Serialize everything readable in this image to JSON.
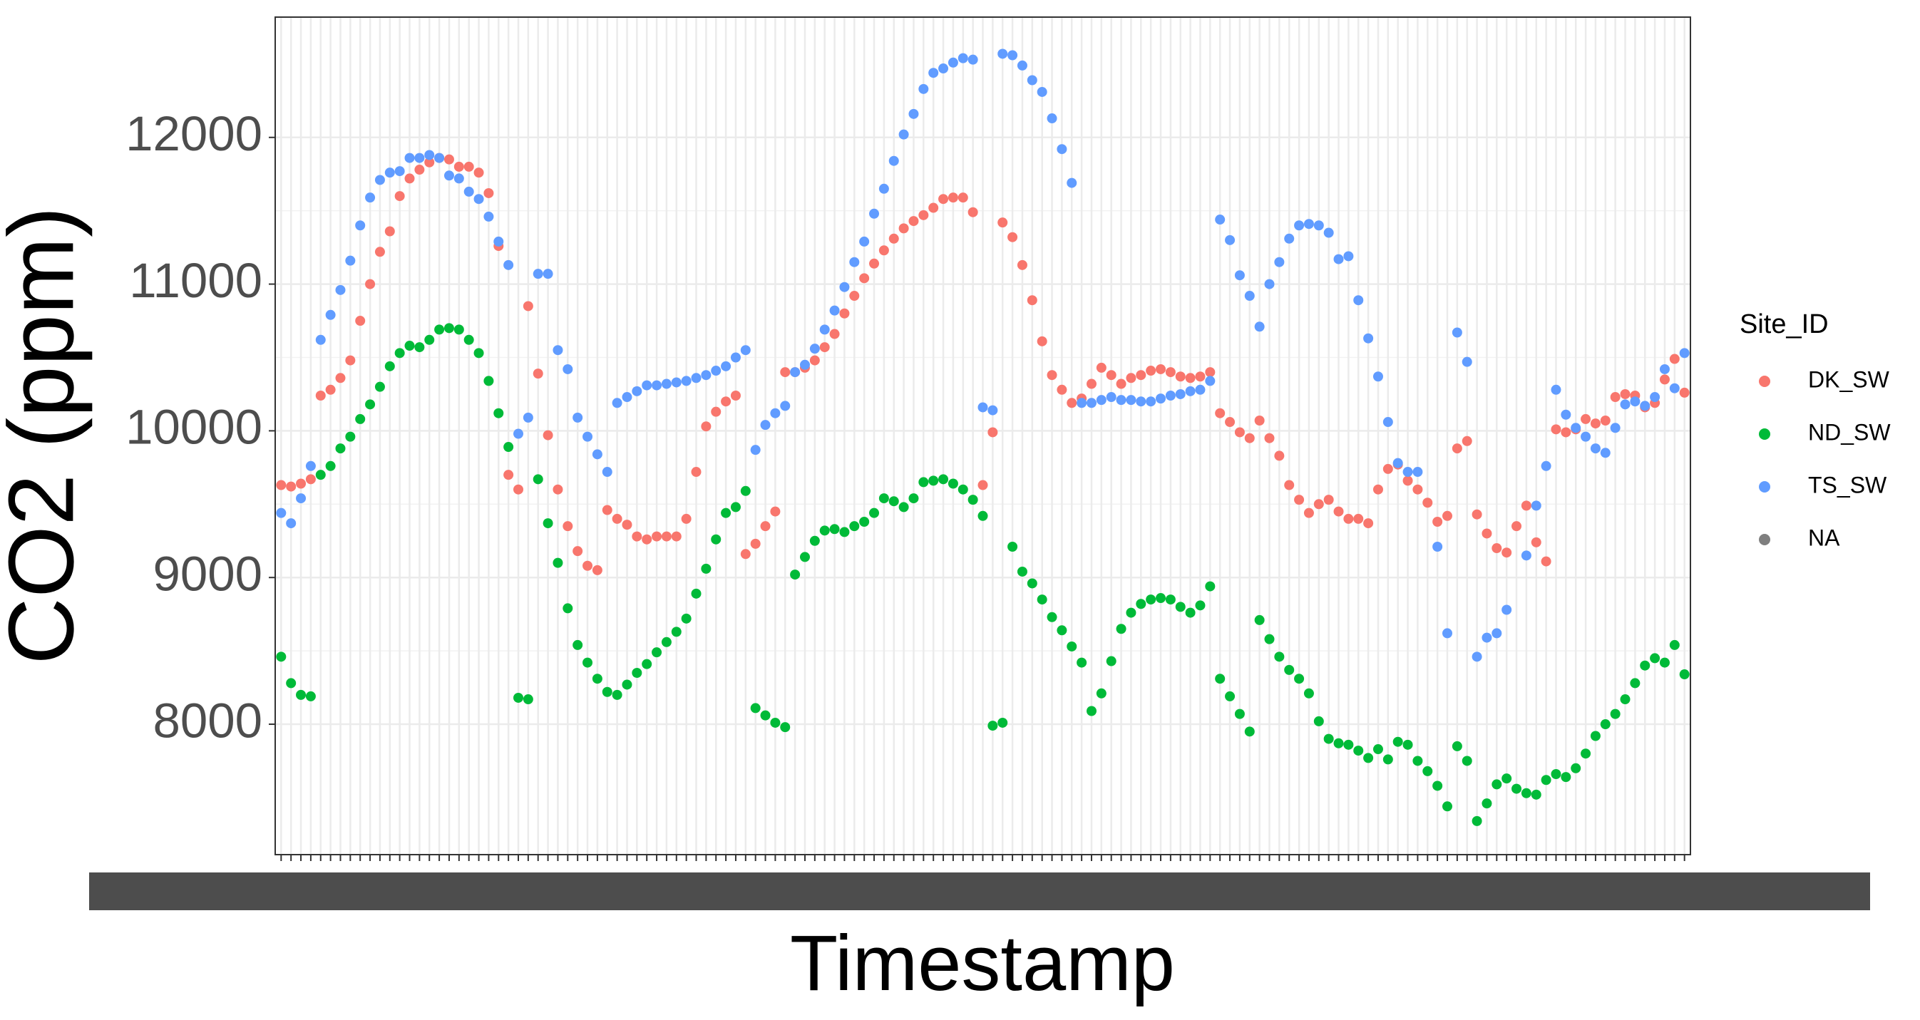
{
  "chart_data": {
    "type": "scatter",
    "x_label": "Timestamp",
    "y_label": "CO2 (ppm)",
    "legend_title": "Site_ID",
    "legend": "right",
    "grid": true,
    "categories": [
      null,
      null,
      null,
      null,
      null,
      null,
      null,
      null,
      null,
      null,
      null,
      null,
      null,
      null,
      null,
      null,
      null,
      null,
      null,
      null,
      null,
      null,
      null,
      null,
      null,
      null,
      null,
      null,
      null,
      null,
      null,
      null,
      null,
      null,
      null,
      null,
      null,
      null,
      null,
      null,
      null,
      null,
      null,
      null,
      null,
      null,
      null,
      null,
      null,
      null,
      null,
      null,
      null,
      null,
      null,
      null,
      null,
      null,
      null,
      null,
      null,
      null,
      null,
      null,
      null,
      null,
      null,
      null,
      null,
      null,
      null,
      null,
      null,
      null,
      null,
      null,
      null,
      null,
      null,
      null,
      null,
      null,
      null,
      null,
      null,
      null,
      null,
      null,
      null,
      null,
      null,
      null,
      null,
      null,
      null,
      null,
      null,
      null,
      null,
      null,
      null,
      null,
      null,
      null,
      null,
      null,
      null,
      null,
      null,
      null,
      null,
      null,
      null,
      null,
      null,
      null,
      null,
      null,
      null,
      null,
      null,
      null,
      null,
      null,
      null,
      null,
      null,
      null,
      null,
      null,
      null,
      null,
      null,
      null,
      null,
      null,
      null,
      null,
      null,
      null,
      null,
      null,
      null
    ],
    "ylim": [
      7111,
      12820
    ],
    "yticks": [
      8000,
      9000,
      10000,
      11000,
      12000
    ],
    "series": [
      {
        "name": "DK_SW",
        "color": "#F8766D",
        "values": [
          9630,
          9620,
          9640,
          9670,
          10240,
          10280,
          10360,
          10480,
          10750,
          11000,
          11220,
          11360,
          11600,
          11720,
          11780,
          11830,
          11860,
          11850,
          11800,
          11800,
          11760,
          11620,
          11260,
          9700,
          9600,
          10850,
          10390,
          9970,
          9600,
          9350,
          9180,
          9080,
          9050,
          9460,
          9400,
          9360,
          9280,
          9260,
          9280,
          9280,
          9280,
          9400,
          9720,
          10030,
          10130,
          10200,
          10240,
          9160,
          9230,
          9350,
          9450,
          10400,
          10400,
          10430,
          10480,
          10570,
          10660,
          10800,
          10920,
          11040,
          11140,
          11230,
          11310,
          11380,
          11430,
          11470,
          11520,
          11580,
          11590,
          11590,
          11490,
          9630,
          9990,
          11420,
          11320,
          11130,
          10890,
          10610,
          10380,
          10280,
          10190,
          10220,
          10320,
          10430,
          10380,
          10320,
          10360,
          10380,
          10410,
          10420,
          10400,
          10370,
          10360,
          10370,
          10400,
          10120,
          10060,
          9990,
          9950,
          10070,
          9950,
          9830,
          9630,
          9530,
          9440,
          9500,
          9530,
          9450,
          9400,
          9400,
          9370,
          9600,
          9740,
          9770,
          9660,
          9600,
          9510,
          9380,
          9420,
          9880,
          9930,
          9430,
          9300,
          9200,
          9170,
          9350,
          9490,
          9240,
          9110,
          10010,
          9990,
          10010,
          10080,
          10050,
          10070,
          10230,
          10250,
          10240,
          10160,
          10190,
          10350,
          10490,
          10260
        ]
      },
      {
        "name": "ND_SW",
        "color": "#00BA38",
        "values": [
          8460,
          8280,
          8200,
          8190,
          9700,
          9760,
          9880,
          9960,
          10080,
          10180,
          10300,
          10440,
          10530,
          10580,
          10570,
          10620,
          10690,
          10700,
          10690,
          10620,
          10530,
          10340,
          10120,
          9890,
          8180,
          8170,
          9670,
          9370,
          9100,
          8790,
          8540,
          8420,
          8310,
          8220,
          8200,
          8270,
          8350,
          8410,
          8490,
          8560,
          8630,
          8720,
          8890,
          9060,
          9260,
          9440,
          9480,
          9590,
          8110,
          8060,
          8010,
          7980,
          9020,
          9140,
          9250,
          9320,
          9330,
          9310,
          9350,
          9380,
          9440,
          9540,
          9520,
          9480,
          9540,
          9650,
          9660,
          9670,
          9640,
          9600,
          9530,
          9420,
          7990,
          8010,
          9210,
          9040,
          8960,
          8850,
          8730,
          8640,
          8530,
          8420,
          8090,
          8210,
          8430,
          8650,
          8760,
          8820,
          8850,
          8860,
          8850,
          8800,
          8760,
          8810,
          8940,
          8310,
          8190,
          8070,
          7950,
          8710,
          8580,
          8460,
          8370,
          8310,
          8210,
          8020,
          7900,
          7870,
          7860,
          7820,
          7770,
          7830,
          7760,
          7880,
          7860,
          7750,
          7680,
          7580,
          7440,
          7850,
          7750,
          7340,
          7460,
          7590,
          7630,
          7560,
          7530,
          7520,
          7620,
          7660,
          7640,
          7700,
          7800,
          7920,
          8000,
          8070,
          8170,
          8280,
          8400,
          8450,
          8420,
          8540,
          8340
        ]
      },
      {
        "name": "TS_SW",
        "color": "#619CFF",
        "values": [
          9440,
          9370,
          9540,
          9760,
          10620,
          10790,
          10960,
          11160,
          11400,
          11590,
          11710,
          11760,
          11770,
          11860,
          11860,
          11880,
          11860,
          11740,
          11720,
          11630,
          11580,
          11460,
          11290,
          11130,
          9980,
          10090,
          11070,
          11070,
          10550,
          10420,
          10090,
          9960,
          9840,
          9720,
          10190,
          10230,
          10270,
          10310,
          10310,
          10320,
          10330,
          10340,
          10360,
          10380,
          10410,
          10440,
          10500,
          10550,
          9870,
          10040,
          10120,
          10170,
          10400,
          10450,
          10560,
          10690,
          10820,
          10980,
          11150,
          11290,
          11480,
          11650,
          11840,
          12020,
          12160,
          12330,
          12440,
          12470,
          12510,
          12540,
          12530,
          10160,
          10140,
          12570,
          12560,
          12490,
          12390,
          12310,
          12130,
          11920,
          11690,
          10190,
          10190,
          10210,
          10230,
          10210,
          10210,
          10200,
          10200,
          10220,
          10240,
          10250,
          10270,
          10280,
          10340,
          11440,
          11300,
          11060,
          10920,
          10710,
          11000,
          11150,
          11310,
          11400,
          11410,
          11400,
          11350,
          11170,
          11190,
          10890,
          10630,
          10370,
          10060,
          9780,
          9720,
          9720,
          null,
          9210,
          8620,
          10670,
          10470,
          8460,
          8590,
          8620,
          8780,
          null,
          9150,
          9490,
          9760,
          10280,
          10110,
          10020,
          9960,
          9880,
          9850,
          10020,
          10180,
          10200,
          10170,
          10230,
          10420,
          10290,
          10530
        ]
      },
      {
        "name": "NA",
        "color": "#7F7F7F",
        "values": [
          null,
          null,
          null,
          null,
          null,
          null,
          null,
          null,
          null,
          null,
          null,
          null,
          null,
          null,
          null,
          null,
          null,
          null,
          null,
          null,
          null,
          null,
          null,
          null,
          null,
          null,
          null,
          null,
          null,
          null,
          null,
          null,
          null,
          null,
          null,
          null,
          null,
          null,
          null,
          null,
          null,
          null,
          null,
          null,
          null,
          null,
          null,
          null,
          null,
          null,
          null,
          null,
          null,
          null,
          null,
          null,
          null,
          null,
          null,
          null,
          null,
          null,
          null,
          null,
          null,
          null,
          null,
          null,
          null,
          null,
          null,
          null,
          null,
          null,
          null,
          null,
          null,
          null,
          null,
          null,
          null,
          null,
          null,
          null,
          null,
          null,
          null,
          null,
          null,
          null,
          null,
          null,
          null,
          null,
          null,
          null,
          null,
          null,
          null,
          null,
          null,
          null,
          null,
          null,
          null,
          null,
          null,
          null,
          null,
          null,
          null,
          null,
          null,
          null,
          null,
          null,
          null,
          null,
          null,
          null,
          null,
          null,
          null,
          null,
          null,
          null,
          null,
          null,
          null,
          null,
          null,
          null,
          null,
          null,
          null,
          null,
          null,
          null,
          null,
          null,
          null,
          null,
          null
        ]
      }
    ]
  }
}
